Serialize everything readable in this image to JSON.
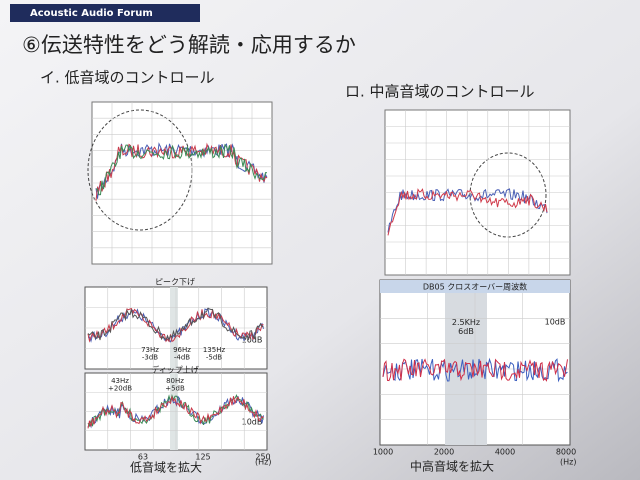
{
  "header": {
    "brand": "Acoustic Audio Forum"
  },
  "title": "⑥伝送特性をどう解読・応用するか",
  "left": {
    "heading": "イ. 低音域のコントロール",
    "peak": {
      "title": "ピーク下げ",
      "labels": [
        "73Hz\n-3dB",
        "96Hz\n-4dB",
        "135Hz\n-5dB"
      ],
      "scale": "10dB"
    },
    "dip": {
      "title": "ディップ上げ",
      "labels": [
        "43Hz\n+20dB",
        "80Hz\n+5dB"
      ],
      "scale": "10dB"
    },
    "ticks": [
      "63",
      "125",
      "250"
    ],
    "unit": "(Hz)",
    "caption": "低音域を拡大"
  },
  "right": {
    "heading": "ロ. 中高音域のコントロール",
    "panel_title": "DB05  クロスオーバー周波数",
    "band_label": "2.5KHz\n6dB",
    "scale": "10dB",
    "ticks": [
      "1000",
      "2000",
      "4000",
      "8000"
    ],
    "unit": "(Hz)",
    "caption": "中高音域を拡大"
  }
}
